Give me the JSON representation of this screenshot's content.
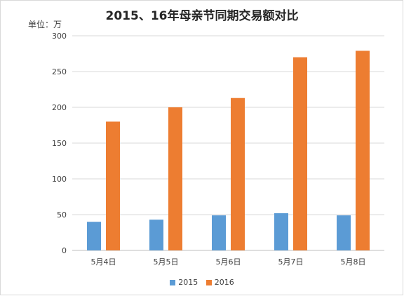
{
  "chart_data": {
    "type": "bar",
    "title": "2015、16年母亲节同期交易额对比",
    "unit_label": "单位：万",
    "categories": [
      "5月4日",
      "5月5日",
      "5月6日",
      "5月7日",
      "5月8日"
    ],
    "series": [
      {
        "name": "2015",
        "color": "#5b9bd5",
        "values": [
          40,
          43,
          49,
          52,
          49
        ]
      },
      {
        "name": "2016",
        "color": "#ed7d31",
        "values": [
          180,
          200,
          213,
          270,
          279
        ]
      }
    ],
    "ylim": [
      0,
      300
    ],
    "yticks": [
      "0",
      "50",
      "100",
      "150",
      "200",
      "250",
      "300"
    ],
    "grid": true,
    "legend_position": "bottom"
  }
}
